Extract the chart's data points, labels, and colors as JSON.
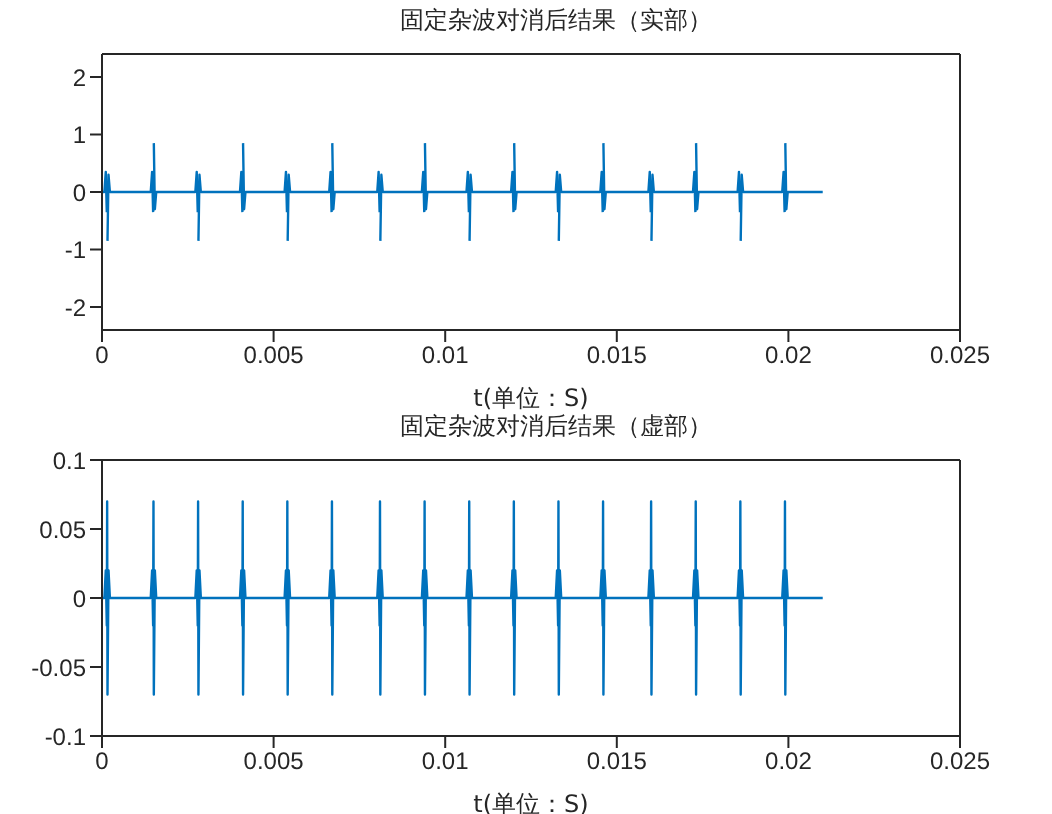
{
  "chart_data": [
    {
      "type": "line",
      "title": "固定杂波对消后结果（实部）",
      "xlabel": "t(单位：S)",
      "xlim": [
        0,
        0.025
      ],
      "xticks": [
        0,
        0.005,
        0.01,
        0.015,
        0.02,
        0.025
      ],
      "ylim": [
        -2.4,
        2.4
      ],
      "yticks": [
        -2,
        -1,
        0,
        1,
        2
      ],
      "x": [
        0,
        7e-05,
        0.00011,
        0.00014,
        0.00015,
        0.00016,
        0.00019,
        0.00023,
        0.00142,
        0.00146,
        0.00149,
        0.0015,
        0.00151,
        0.00154,
        0.00158,
        0.00272,
        0.00276,
        0.00279,
        0.0028,
        0.00281,
        0.00284,
        0.00288,
        0.00402,
        0.00406,
        0.00409,
        0.0041,
        0.00411,
        0.00414,
        0.00418,
        0.00532,
        0.00536,
        0.00539,
        0.0054,
        0.00541,
        0.00544,
        0.00548,
        0.00662,
        0.00666,
        0.00669,
        0.0067,
        0.00671,
        0.00674,
        0.00678,
        0.00802,
        0.00806,
        0.00809,
        0.0081,
        0.00811,
        0.00814,
        0.00818,
        0.00932,
        0.00936,
        0.00939,
        0.0094,
        0.00941,
        0.00944,
        0.00948,
        0.01062,
        0.01066,
        0.01069,
        0.0107,
        0.01071,
        0.01074,
        0.01078,
        0.01192,
        0.01196,
        0.01199,
        0.012,
        0.01201,
        0.01204,
        0.01208,
        0.01322,
        0.01326,
        0.01329,
        0.0133,
        0.01331,
        0.01334,
        0.01338,
        0.01452,
        0.01456,
        0.01459,
        0.0146,
        0.01461,
        0.01464,
        0.01468,
        0.01592,
        0.01596,
        0.01599,
        0.016,
        0.01601,
        0.01604,
        0.01608,
        0.01722,
        0.01726,
        0.01729,
        0.0173,
        0.01731,
        0.01734,
        0.01738,
        0.01852,
        0.01856,
        0.01859,
        0.0186,
        0.01861,
        0.01864,
        0.01868,
        0.01982,
        0.01986,
        0.01989,
        0.0199,
        0.01991,
        0.01994,
        0.01998,
        0.021
      ],
      "series": [
        {
          "color": "#0072bd",
          "values": [
            0,
            0,
            0.35,
            -0.35,
            null,
            -0.85,
            0.3,
            0,
            0,
            0.35,
            -0.35,
            null,
            0.85,
            -0.3,
            0,
            0,
            0.35,
            -0.35,
            null,
            -0.85,
            0.3,
            0,
            0,
            0.35,
            -0.35,
            null,
            0.85,
            -0.3,
            0,
            0,
            0.35,
            -0.35,
            null,
            -0.85,
            0.3,
            0,
            0,
            0.35,
            -0.35,
            null,
            0.85,
            -0.3,
            0,
            0,
            0.35,
            -0.35,
            null,
            -0.85,
            0.3,
            0,
            0,
            0.35,
            -0.35,
            null,
            0.85,
            -0.3,
            0,
            0,
            0.35,
            -0.35,
            null,
            -0.85,
            0.3,
            0,
            0,
            0.35,
            -0.35,
            null,
            0.85,
            -0.3,
            0,
            0,
            0.35,
            -0.35,
            null,
            -0.85,
            0.3,
            0,
            0,
            0.35,
            -0.35,
            null,
            0.85,
            -0.3,
            0,
            0,
            0.35,
            -0.35,
            null,
            -0.85,
            0.3,
            0,
            0,
            0.35,
            -0.35,
            null,
            0.85,
            -0.3,
            0,
            0,
            0.35,
            -0.35,
            null,
            -0.85,
            0.3,
            0,
            0,
            0.35,
            -0.35,
            null,
            0.85,
            -0.3,
            0,
            0
          ]
        }
      ]
    },
    {
      "type": "line",
      "title": "固定杂波对消后结果（虚部）",
      "xlabel": "t(单位：S)",
      "xlim": [
        0,
        0.025
      ],
      "xticks": [
        0,
        0.005,
        0.01,
        0.015,
        0.02,
        0.025
      ],
      "ylim": [
        -0.1,
        0.1
      ],
      "yticks": [
        -0.1,
        -0.05,
        0,
        0.05,
        0.1
      ],
      "x": [
        0,
        7e-05,
        0.00011,
        0.00014,
        0.00015,
        0.00016,
        0.00019,
        0.00023,
        0.00142,
        0.00146,
        0.00149,
        0.0015,
        0.00151,
        0.00154,
        0.00158,
        0.00272,
        0.00276,
        0.00279,
        0.0028,
        0.00281,
        0.00284,
        0.00288,
        0.00402,
        0.00406,
        0.00409,
        0.0041,
        0.00411,
        0.00414,
        0.00418,
        0.00532,
        0.00536,
        0.00539,
        0.0054,
        0.00541,
        0.00544,
        0.00548,
        0.00662,
        0.00666,
        0.00669,
        0.0067,
        0.00671,
        0.00674,
        0.00678,
        0.00802,
        0.00806,
        0.00809,
        0.0081,
        0.00811,
        0.00814,
        0.00818,
        0.00932,
        0.00936,
        0.00939,
        0.0094,
        0.00941,
        0.00944,
        0.00948,
        0.01062,
        0.01066,
        0.01069,
        0.0107,
        0.01071,
        0.01074,
        0.01078,
        0.01192,
        0.01196,
        0.01199,
        0.012,
        0.01201,
        0.01204,
        0.01208,
        0.01322,
        0.01326,
        0.01329,
        0.0133,
        0.01331,
        0.01334,
        0.01338,
        0.01452,
        0.01456,
        0.01459,
        0.0146,
        0.01461,
        0.01464,
        0.01468,
        0.01592,
        0.01596,
        0.01599,
        0.016,
        0.01601,
        0.01604,
        0.01608,
        0.01722,
        0.01726,
        0.01729,
        0.0173,
        0.01731,
        0.01734,
        0.01738,
        0.01852,
        0.01856,
        0.01859,
        0.0186,
        0.01861,
        0.01864,
        0.01868,
        0.01982,
        0.01986,
        0.01989,
        0.0199,
        0.01991,
        0.01994,
        0.01998,
        0.021
      ],
      "series": [
        {
          "color": "#0072bd",
          "values": [
            0,
            0,
            0.02,
            -0.02,
            0.07,
            -0.07,
            0.02,
            0,
            0,
            0.02,
            -0.02,
            0.07,
            -0.07,
            0.02,
            0,
            0,
            0.02,
            -0.02,
            0.07,
            -0.07,
            0.02,
            0,
            0,
            0.02,
            -0.02,
            0.07,
            -0.07,
            0.02,
            0,
            0,
            0.02,
            -0.02,
            0.07,
            -0.07,
            0.02,
            0,
            0,
            0.02,
            -0.02,
            0.07,
            -0.07,
            0.02,
            0,
            0,
            0.02,
            -0.02,
            0.07,
            -0.07,
            0.02,
            0,
            0,
            0.02,
            -0.02,
            0.07,
            -0.07,
            0.02,
            0,
            0,
            0.02,
            -0.02,
            0.07,
            -0.07,
            0.02,
            0,
            0,
            0.02,
            -0.02,
            0.07,
            -0.07,
            0.02,
            0,
            0,
            0.02,
            -0.02,
            0.07,
            -0.07,
            0.02,
            0,
            0,
            0.02,
            -0.02,
            0.07,
            -0.07,
            0.02,
            0,
            0,
            0.02,
            -0.02,
            0.07,
            -0.07,
            0.02,
            0,
            0,
            0.02,
            -0.02,
            0.07,
            -0.07,
            0.02,
            0,
            0,
            0.02,
            -0.02,
            0.07,
            -0.07,
            0.02,
            0,
            0,
            0.02,
            -0.02,
            0.07,
            -0.07,
            0.02,
            0,
            0
          ]
        }
      ]
    }
  ]
}
